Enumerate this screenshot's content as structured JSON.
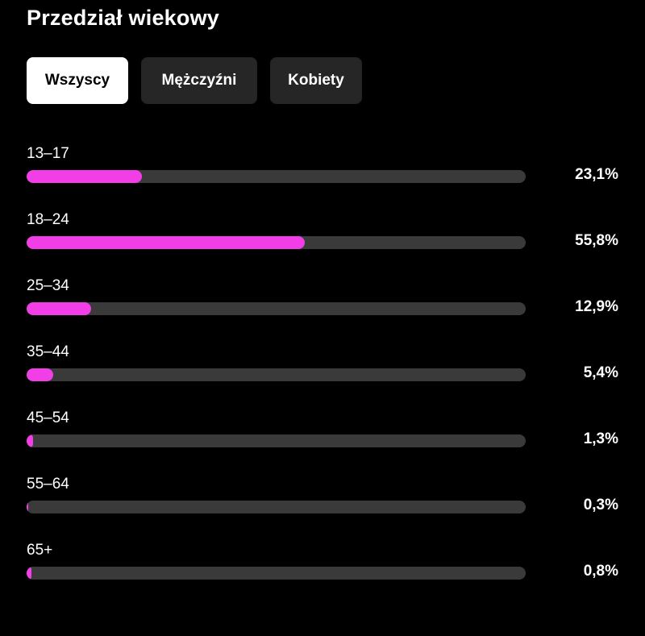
{
  "title": "Przedział wiekowy",
  "tabs": [
    {
      "label": "Wszyscy",
      "active": true
    },
    {
      "label": "Mężczyźni",
      "active": false
    },
    {
      "label": "Kobiety",
      "active": false
    }
  ],
  "colors": {
    "background": "#000000",
    "bar_fill": "#f23ee6",
    "bar_track": "#3a3a3a",
    "tab_active_bg": "#ffffff",
    "tab_inactive_bg": "#262626"
  },
  "age_groups": [
    {
      "label": "13–17",
      "value_text": "23,1%",
      "percent": 23.1
    },
    {
      "label": "18–24",
      "value_text": "55,8%",
      "percent": 55.8
    },
    {
      "label": "25–34",
      "value_text": "12,9%",
      "percent": 12.9
    },
    {
      "label": "35–44",
      "value_text": "5,4%",
      "percent": 5.4
    },
    {
      "label": "45–54",
      "value_text": "1,3%",
      "percent": 1.3
    },
    {
      "label": "55–64",
      "value_text": "0,3%",
      "percent": 0.3
    },
    {
      "label": "65+",
      "value_text": "0,8%",
      "percent": 0.8
    }
  ]
}
